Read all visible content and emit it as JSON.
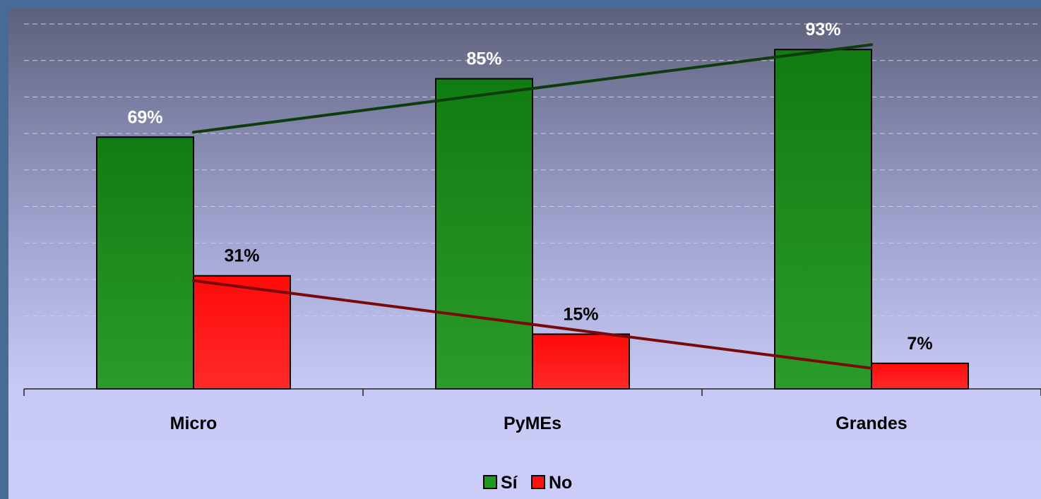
{
  "chart_data": {
    "type": "bar",
    "categories": [
      "Micro",
      "PyMEs",
      "Grandes"
    ],
    "series": [
      {
        "name": "Sí",
        "values": [
          69,
          85,
          93
        ],
        "color": "#1f9a1f",
        "labels": [
          "69%",
          "85%",
          "93%"
        ],
        "label_color": "#ffffff"
      },
      {
        "name": "No",
        "values": [
          31,
          15,
          7
        ],
        "color": "#ff1010",
        "labels": [
          "31%",
          "15%",
          "7%"
        ],
        "label_color": "#000000"
      }
    ],
    "trendlines": [
      {
        "series": "Sí",
        "color": "#0d3d0d"
      },
      {
        "series": "No",
        "color": "#7a0a0a"
      }
    ],
    "ylim": [
      0,
      100
    ],
    "grid": true,
    "legend": "bottom-center",
    "title": "",
    "xlabel": "",
    "ylabel": ""
  }
}
